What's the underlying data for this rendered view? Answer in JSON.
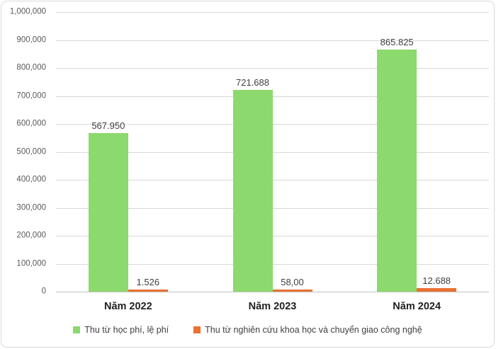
{
  "chart_data": {
    "type": "bar",
    "title": "",
    "xlabel": "",
    "ylabel": "",
    "categories": [
      "Năm 2022",
      "Năm 2023",
      "Năm 2024"
    ],
    "series": [
      {
        "name": "Thu từ học phí, lệ phí",
        "color": "#8cd96e",
        "values": [
          567950,
          721688,
          865825
        ],
        "labels": [
          "567.950",
          "721.688",
          "865.825"
        ]
      },
      {
        "name": "Thu từ nghiên cứu khoa học và chuyển giao công nghệ",
        "color": "#e97132",
        "values": [
          1526,
          58,
          12688
        ],
        "labels": [
          "1.526",
          "58,00",
          "12.688"
        ]
      }
    ],
    "ylim": [
      0,
      1000000
    ],
    "ytick_step": 100000,
    "ytick_labels": [
      "0",
      "100,000",
      "200,000",
      "300,000",
      "400,000",
      "500,000",
      "600,000",
      "700,000",
      "800,000",
      "900,000",
      "1,000,000"
    ],
    "grid": true,
    "gridline_color": "#d9d9d9",
    "axis_line_color": "#c3c3c3",
    "legend_position": "bottom"
  }
}
